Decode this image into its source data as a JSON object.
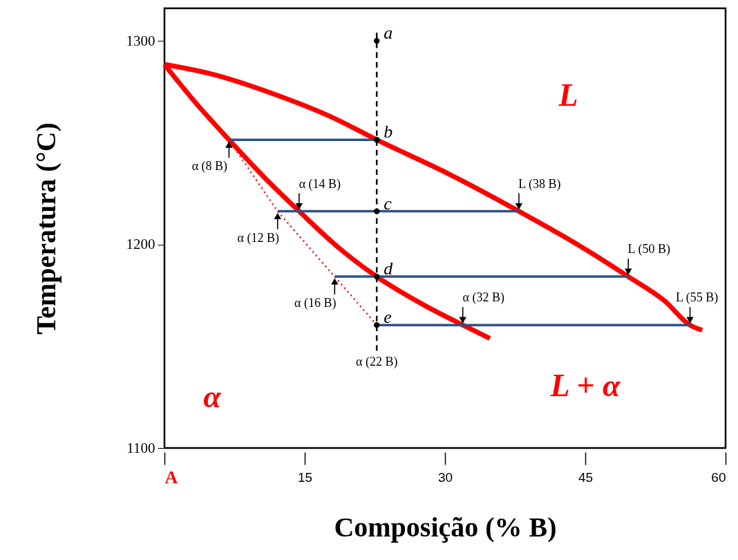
{
  "chart_data": {
    "type": "line",
    "xlabel": "Composição (% B)",
    "ylabel": "Temperatura  (°C)",
    "xlim": [
      0,
      60
    ],
    "ylim": [
      1100,
      1316
    ],
    "xticks": [
      {
        "value": 0,
        "label": "A"
      },
      15,
      30,
      45,
      60
    ],
    "yticks": [
      1100,
      1200,
      1300
    ],
    "series": [
      {
        "color": "#ff0000",
        "x": [
          0,
          4.7,
          12.1,
          18.0,
          22.7,
          30.5,
          37.9,
          43.9,
          49.6,
          53.5,
          56.2,
          57.5
        ],
        "values": [
          1288.4,
          1284.1,
          1273.2,
          1262.3,
          1251.4,
          1234.4,
          1216.3,
          1200.7,
          1184.2,
          1172.2,
          1160.4,
          1157.9
        ]
      },
      {
        "color": "#ff0000",
        "x": [
          0,
          3.2,
          6.9,
          10.6,
          14.4,
          18.7,
          22.7,
          27.6,
          31.9,
          34.8
        ],
        "values": [
          1288.4,
          1270.3,
          1251.4,
          1233.3,
          1216.3,
          1198.1,
          1184.2,
          1170.6,
          1160.4,
          1153.8
        ]
      },
      {
        "color": "#2f5085",
        "x": [
          6.9,
          22.7
        ],
        "values": [
          1251.4,
          1251.4
        ]
      },
      {
        "color": "#2f5085",
        "x": [
          12.1,
          37.9
        ],
        "values": [
          1216.3,
          1216.3
        ]
      },
      {
        "color": "#2f5085",
        "x": [
          18.2,
          49.6
        ],
        "values": [
          1184.2,
          1184.2
        ]
      },
      {
        "color": "#2f5085",
        "x": [
          22.7,
          56.2
        ],
        "values": [
          1160.4,
          1160.4
        ]
      },
      {
        "color": "#ff0000",
        "line_style": "dotted",
        "x": [
          6.9,
          12.1,
          18.2,
          22.7
        ],
        "values": [
          1251.4,
          1216.3,
          1184.2,
          1160.4
        ]
      },
      {
        "name": "α (22 B)",
        "color": "#000000",
        "line_style": "dashed",
        "x": [
          22.7,
          22.7
        ],
        "values": [
          1304,
          1147.8
        ]
      },
      {
        "type": "scatter",
        "marker": "circle",
        "color": "#000000",
        "x": [
          22.7,
          22.7,
          22.7,
          22.7,
          22.7
        ],
        "values": [
          1300,
          1251.4,
          1216.3,
          1184.2,
          1160.4
        ],
        "value_labels": [
          "a",
          "b",
          "c",
          "d",
          "e"
        ]
      }
    ],
    "annotations": [
      {
        "text": "α (8 B)",
        "x": 6.9,
        "y": 1251.4
      },
      {
        "text": "α (14 B)",
        "x": 14.4,
        "y": 1216.3
      },
      {
        "text": "α (12 B)",
        "x": 12.1,
        "y": 1216.3
      },
      {
        "text": "L (38 B)",
        "x": 37.9,
        "y": 1216.3
      },
      {
        "text": "L (50 B)",
        "x": 49.6,
        "y": 1184.2
      },
      {
        "text": "α (16 B)",
        "x": 18.2,
        "y": 1184.2
      },
      {
        "text": "α (32 B)",
        "x": 31.9,
        "y": 1160.4
      },
      {
        "text": "L (55 B)",
        "x": 56.2,
        "y": 1160.4
      },
      "L",
      "L + α",
      "α"
    ]
  }
}
